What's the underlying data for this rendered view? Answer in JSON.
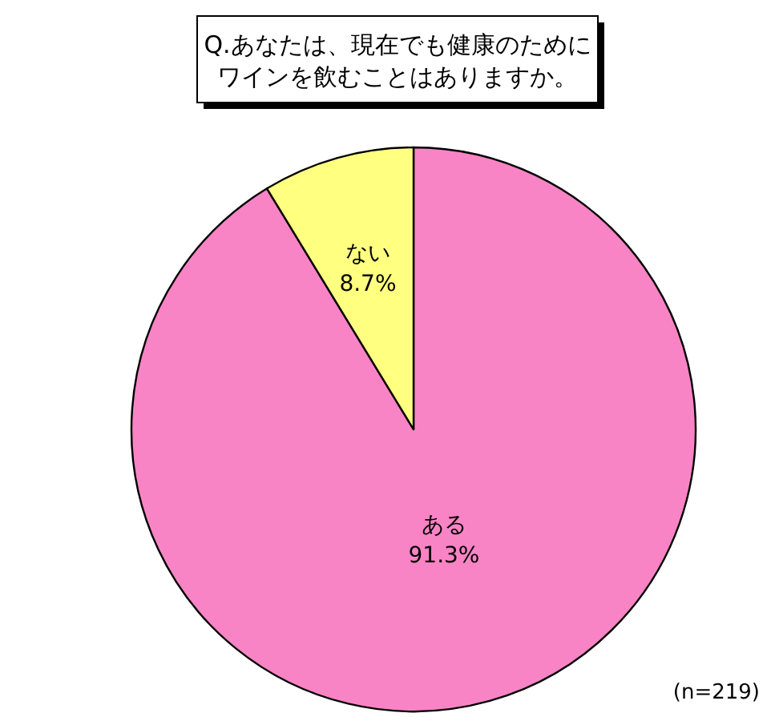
{
  "chart_data": {
    "type": "pie",
    "title": "Q.あなたは、現在でも健康のためにワインを飲むことはありますか。",
    "categories": [
      "ある",
      "ない"
    ],
    "values": [
      91.3,
      8.7
    ],
    "colors": [
      "#f984c5",
      "#ffff80"
    ],
    "value_labels": [
      "91.3%",
      "8.7%"
    ],
    "annotations": [
      "(n=219)"
    ]
  }
}
